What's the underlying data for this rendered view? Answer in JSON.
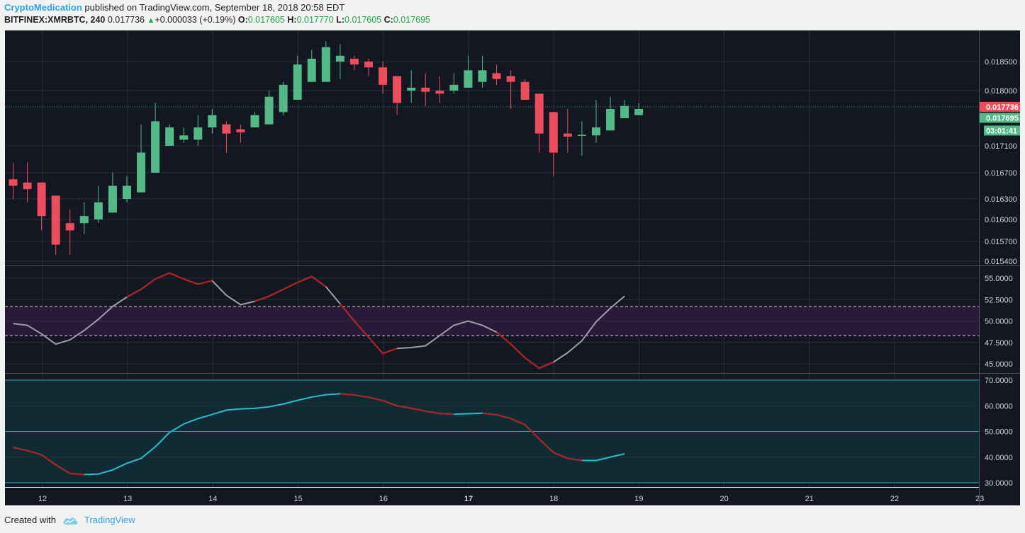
{
  "header": {
    "author": "CryptoMedication",
    "published": "published on TradingView.com, September 18, 2018 20:58 EDT"
  },
  "symbol_bar": {
    "symbol": "BITFINEX:XMRBTC, 240",
    "last": "0.017736",
    "change": "+0.000033 (+0.19%)",
    "o_label": "O:",
    "o": "0.017605",
    "h_label": "H:",
    "h": "0.017770",
    "l_label": "L:",
    "l": "0.017605",
    "c_label": "C:",
    "c": "0.017695"
  },
  "footer": {
    "created_with": "Created with",
    "brand": "TradingView"
  },
  "colors": {
    "background": "#131722",
    "up": "#53b987",
    "down": "#eb4d5c",
    "grid": "#2a2e39",
    "osc1_line": "#9e9ea8",
    "osc1_down": "#b71c1c",
    "osc2_line": "#23c0cc",
    "osc2_down": "#b71c1c",
    "band": "#2a1a3a",
    "osc2_fill": "#112b35"
  },
  "chart_data": [
    {
      "type": "candlestick",
      "title": "BITFINEX:XMRBTC, 240",
      "y_ticks": [
        "0.018500",
        "0.018000",
        "0.017100",
        "0.016700",
        "0.016300",
        "0.016000",
        "0.015700",
        "0.015400"
      ],
      "y_tick_values": [
        0.0185,
        0.018,
        0.0171,
        0.0167,
        0.0163,
        0.016,
        0.0157,
        0.0154
      ],
      "x_ticks": [
        "12",
        "13",
        "14",
        "15",
        "16",
        "17",
        "18",
        "19",
        "20",
        "21",
        "22",
        "23"
      ],
      "last_price_label": "0.017736",
      "close_label": "0.017695",
      "countdown": "03:01:41",
      "candles": [
        {
          "o": 0.0166,
          "h": 0.01685,
          "l": 0.0163,
          "c": 0.0165
        },
        {
          "o": 0.01655,
          "h": 0.01685,
          "l": 0.01625,
          "c": 0.01645
        },
        {
          "o": 0.01655,
          "h": 0.01655,
          "l": 0.01585,
          "c": 0.01605
        },
        {
          "o": 0.01635,
          "h": 0.01635,
          "l": 0.0155,
          "c": 0.01565
        },
        {
          "o": 0.01595,
          "h": 0.01615,
          "l": 0.0155,
          "c": 0.01585
        },
        {
          "o": 0.01595,
          "h": 0.01625,
          "l": 0.0158,
          "c": 0.01605
        },
        {
          "o": 0.016,
          "h": 0.0165,
          "l": 0.01595,
          "c": 0.01625
        },
        {
          "o": 0.0161,
          "h": 0.0167,
          "l": 0.0161,
          "c": 0.0165
        },
        {
          "o": 0.0163,
          "h": 0.01665,
          "l": 0.01625,
          "c": 0.0165
        },
        {
          "o": 0.0164,
          "h": 0.01745,
          "l": 0.0164,
          "c": 0.017
        },
        {
          "o": 0.0167,
          "h": 0.0178,
          "l": 0.0167,
          "c": 0.0175
        },
        {
          "o": 0.0171,
          "h": 0.01745,
          "l": 0.0171,
          "c": 0.0174
        },
        {
          "o": 0.0172,
          "h": 0.0174,
          "l": 0.01715,
          "c": 0.01727
        },
        {
          "o": 0.0172,
          "h": 0.0176,
          "l": 0.0171,
          "c": 0.0174
        },
        {
          "o": 0.0174,
          "h": 0.0177,
          "l": 0.0173,
          "c": 0.0176
        },
        {
          "o": 0.01745,
          "h": 0.0175,
          "l": 0.017,
          "c": 0.0173
        },
        {
          "o": 0.01737,
          "h": 0.01745,
          "l": 0.01715,
          "c": 0.01732
        },
        {
          "o": 0.0174,
          "h": 0.01765,
          "l": 0.0174,
          "c": 0.0176
        },
        {
          "o": 0.01745,
          "h": 0.018,
          "l": 0.01745,
          "c": 0.0179
        },
        {
          "o": 0.01765,
          "h": 0.01815,
          "l": 0.0176,
          "c": 0.0181
        },
        {
          "o": 0.01785,
          "h": 0.0186,
          "l": 0.01785,
          "c": 0.01845
        },
        {
          "o": 0.01815,
          "h": 0.0187,
          "l": 0.01815,
          "c": 0.01855
        },
        {
          "o": 0.01815,
          "h": 0.01885,
          "l": 0.01815,
          "c": 0.01875
        },
        {
          "o": 0.0185,
          "h": 0.0188,
          "l": 0.0182,
          "c": 0.0186
        },
        {
          "o": 0.01855,
          "h": 0.0186,
          "l": 0.01835,
          "c": 0.01845
        },
        {
          "o": 0.0185,
          "h": 0.01855,
          "l": 0.01825,
          "c": 0.0184
        },
        {
          "o": 0.0184,
          "h": 0.0185,
          "l": 0.01795,
          "c": 0.0181
        },
        {
          "o": 0.01825,
          "h": 0.01825,
          "l": 0.0176,
          "c": 0.0178
        },
        {
          "o": 0.018,
          "h": 0.01835,
          "l": 0.0178,
          "c": 0.01805
        },
        {
          "o": 0.01805,
          "h": 0.0183,
          "l": 0.01775,
          "c": 0.01798
        },
        {
          "o": 0.018,
          "h": 0.01825,
          "l": 0.0178,
          "c": 0.01795
        },
        {
          "o": 0.018,
          "h": 0.0183,
          "l": 0.01795,
          "c": 0.0181
        },
        {
          "o": 0.01805,
          "h": 0.0186,
          "l": 0.01805,
          "c": 0.01835
        },
        {
          "o": 0.01815,
          "h": 0.0186,
          "l": 0.01805,
          "c": 0.01835
        },
        {
          "o": 0.0183,
          "h": 0.01845,
          "l": 0.0181,
          "c": 0.0182
        },
        {
          "o": 0.01825,
          "h": 0.01835,
          "l": 0.0177,
          "c": 0.01815
        },
        {
          "o": 0.01815,
          "h": 0.0182,
          "l": 0.01785,
          "c": 0.01785
        },
        {
          "o": 0.01795,
          "h": 0.01795,
          "l": 0.017,
          "c": 0.0173
        },
        {
          "o": 0.01765,
          "h": 0.01765,
          "l": 0.01665,
          "c": 0.017
        },
        {
          "o": 0.0173,
          "h": 0.0177,
          "l": 0.017,
          "c": 0.01725
        },
        {
          "o": 0.01728,
          "h": 0.0175,
          "l": 0.01695,
          "c": 0.01728
        },
        {
          "o": 0.01727,
          "h": 0.01785,
          "l": 0.01715,
          "c": 0.0174
        },
        {
          "o": 0.01735,
          "h": 0.0179,
          "l": 0.01735,
          "c": 0.0177
        },
        {
          "o": 0.01755,
          "h": 0.01785,
          "l": 0.01755,
          "c": 0.01775
        },
        {
          "o": 0.0176,
          "h": 0.0178,
          "l": 0.0176,
          "c": 0.0177
        }
      ]
    },
    {
      "type": "line",
      "y_ticks": [
        "55.0000",
        "52.5000",
        "50.0000",
        "47.5000",
        "45.0000"
      ],
      "y_tick_values": [
        55,
        52.5,
        50,
        47.5,
        45
      ],
      "band": [
        48.3,
        51.7
      ],
      "values": [
        49.7,
        49.5,
        48.5,
        47.3,
        47.8,
        48.9,
        50.2,
        51.7,
        52.8,
        53.7,
        54.9,
        55.6,
        54.9,
        54.3,
        54.7,
        53.0,
        51.9,
        52.3,
        52.9,
        53.7,
        54.5,
        55.2,
        54.0,
        52.0,
        50.0,
        48.1,
        46.2,
        46.8,
        46.9,
        47.1,
        48.3,
        49.5,
        50.0,
        49.5,
        48.7,
        47.3,
        45.7,
        44.5,
        45.2,
        46.3,
        47.7,
        49.9,
        51.5,
        52.9
      ],
      "down_segments": [
        [
          8,
          14
        ],
        [
          17,
          22
        ],
        [
          23,
          27
        ],
        [
          34,
          38
        ]
      ]
    },
    {
      "type": "line",
      "y_ticks": [
        "70.0000",
        "60.0000",
        "50.0000",
        "40.0000",
        "30.0000"
      ],
      "y_tick_values": [
        70,
        60,
        50,
        40,
        30
      ],
      "levels": [
        70,
        50,
        30
      ],
      "values": [
        43.8,
        42.5,
        40.9,
        37.0,
        33.6,
        33.2,
        33.4,
        35.0,
        37.6,
        39.5,
        44.0,
        49.6,
        52.9,
        55.0,
        56.6,
        58.3,
        58.8,
        59.0,
        59.6,
        60.7,
        62.1,
        63.4,
        64.3,
        64.7,
        64.2,
        63.3,
        62.0,
        60.0,
        59.0,
        57.9,
        57.0,
        56.7,
        56.9,
        57.1,
        56.5,
        55.0,
        52.6,
        47.0,
        41.8,
        39.5,
        38.7,
        38.7,
        40.0,
        41.3
      ],
      "down_segments": [
        [
          0,
          5
        ],
        [
          23,
          31
        ],
        [
          33,
          40
        ]
      ]
    }
  ]
}
